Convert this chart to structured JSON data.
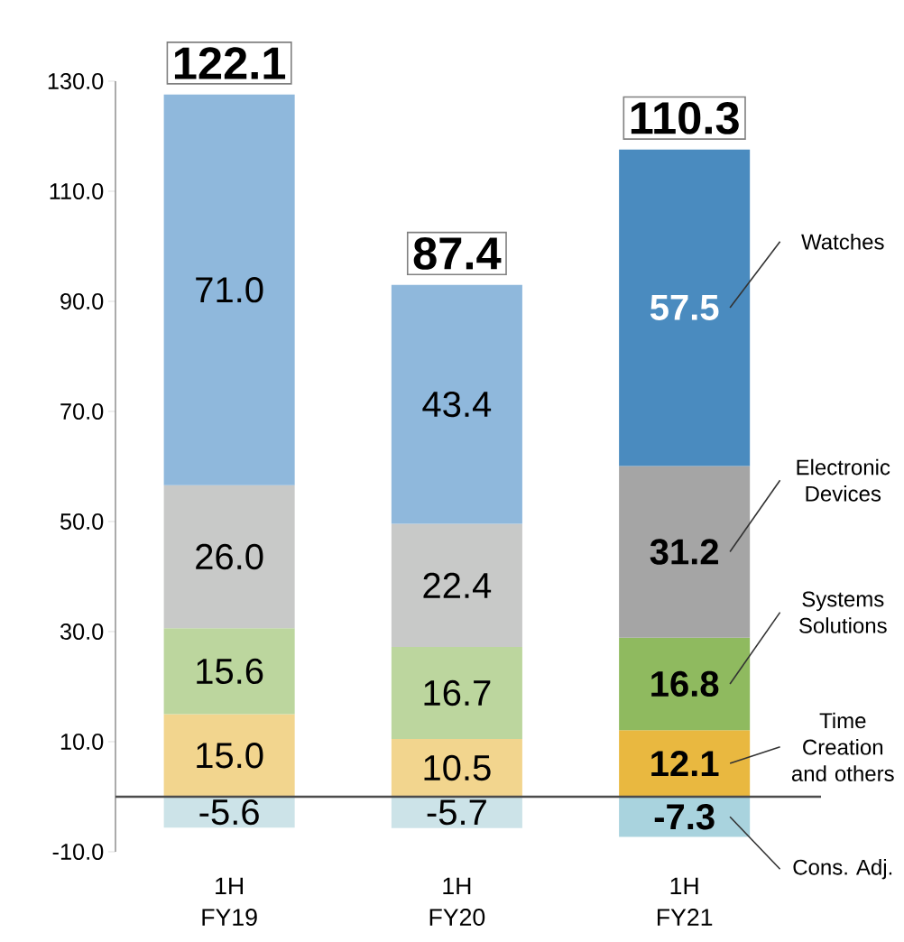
{
  "chart_data": {
    "type": "bar",
    "stacked": true,
    "categories": [
      "1H FY19",
      "1H FY20",
      "1H FY21"
    ],
    "series": [
      {
        "name": "Cons. Adj.",
        "colors": [
          "#cce3e8",
          "#cce3e8",
          "#a9d3de"
        ],
        "values": [
          -5.6,
          -5.7,
          -7.3
        ],
        "value_labels": [
          "-5.6",
          "-5.7",
          "-7.3"
        ]
      },
      {
        "name": "Time Creation and others",
        "colors": [
          "#f2d58e",
          "#f2d58e",
          "#e9b840"
        ],
        "values": [
          15.0,
          10.5,
          12.1
        ],
        "value_labels": [
          "15.0",
          "10.5",
          "12.1"
        ]
      },
      {
        "name": "Systems Solutions",
        "colors": [
          "#bcd69e",
          "#bcd69e",
          "#8fba5f"
        ],
        "values": [
          15.6,
          16.7,
          16.8
        ],
        "value_labels": [
          "15.6",
          "16.7",
          "16.8"
        ]
      },
      {
        "name": "Electronic Devices",
        "colors": [
          "#c8c9c8",
          "#c8c9c8",
          "#a5a5a5"
        ],
        "values": [
          26.0,
          22.4,
          31.2
        ],
        "value_labels": [
          "26.0",
          "22.4",
          "31.2"
        ]
      },
      {
        "name": "Watches",
        "colors": [
          "#8fb8dc",
          "#8fb8dc",
          "#4a8bbf"
        ],
        "values": [
          71.0,
          43.4,
          57.5
        ],
        "value_labels": [
          "71.0",
          "43.4",
          "57.5"
        ]
      }
    ],
    "totals": [
      "122.1",
      "87.4",
      "110.3"
    ],
    "ylim": [
      -10,
      130
    ],
    "yticks": [
      {
        "value": -10,
        "label": "-10.0"
      },
      {
        "value": 10,
        "label": "10.0"
      },
      {
        "value": 30,
        "label": "30.0"
      },
      {
        "value": 50,
        "label": "50.0"
      },
      {
        "value": 70,
        "label": "70.0"
      },
      {
        "value": 90,
        "label": "90.0"
      },
      {
        "value": 110,
        "label": "110.0"
      },
      {
        "value": 130,
        "label": "130.0"
      }
    ]
  }
}
